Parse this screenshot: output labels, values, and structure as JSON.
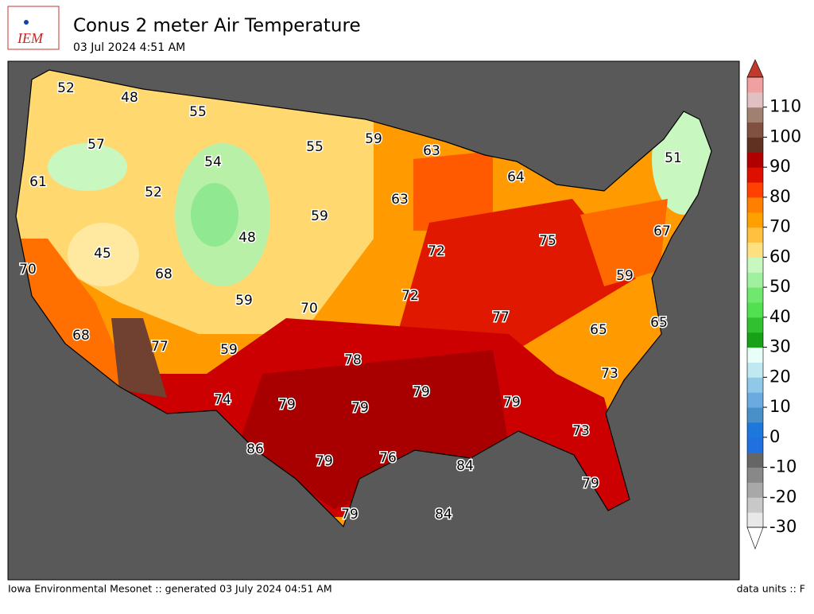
{
  "header": {
    "logo": "IEM",
    "title": "Conus 2 meter Air Temperature",
    "subtitle": "03 Jul 2024 4:51 AM"
  },
  "map": {
    "stations": [
      52,
      48,
      55,
      57,
      54,
      55,
      59,
      63,
      51,
      61,
      52,
      64,
      63,
      59,
      48,
      45,
      70,
      68,
      72,
      75,
      67,
      59,
      59,
      70,
      72,
      77,
      65,
      65,
      68,
      77,
      59,
      78,
      73,
      74,
      79,
      79,
      79,
      79,
      73,
      86,
      79,
      76,
      84,
      79,
      79,
      84
    ]
  },
  "colorbar": {
    "limits": [
      -30,
      120
    ],
    "ticks": [
      -30,
      -20,
      -10,
      0,
      10,
      20,
      30,
      40,
      50,
      60,
      70,
      80,
      90,
      100,
      110
    ]
  },
  "footer": {
    "left": "Iowa Environmental Mesonet :: generated 03 July 2024 04:51 AM",
    "right": "data units :: F"
  }
}
